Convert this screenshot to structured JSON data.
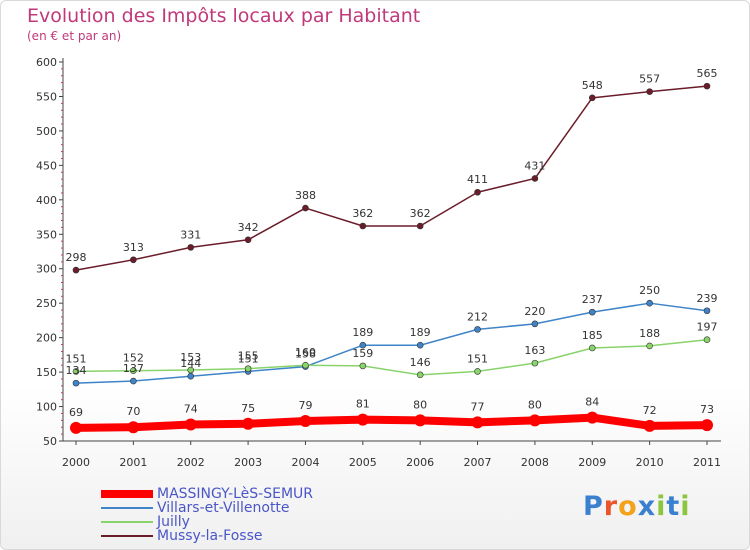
{
  "chart_data": {
    "type": "line",
    "title": "Evolution des Impôts locaux par Habitant",
    "subtitle": "(en € et par an)",
    "x": [
      "2000",
      "2001",
      "2002",
      "2003",
      "2004",
      "2005",
      "2006",
      "2007",
      "2008",
      "2009",
      "2010",
      "2011"
    ],
    "xlabel": "",
    "ylabel": "",
    "ylim": [
      50,
      600
    ],
    "yticks": [
      50,
      100,
      150,
      200,
      250,
      300,
      350,
      400,
      450,
      500,
      550,
      600
    ],
    "grid": false,
    "legend_position": "bottom-left",
    "series": [
      {
        "name": "Mussy-la-Fosse",
        "color": "#6b1c2a",
        "values": [
          298,
          313,
          331,
          342,
          388,
          362,
          362,
          411,
          431,
          548,
          557,
          565
        ]
      },
      {
        "name": "Villars-et-Villenotte",
        "color": "#3f84c8",
        "values": [
          134,
          137,
          144,
          151,
          158,
          189,
          189,
          212,
          220,
          237,
          250,
          239
        ]
      },
      {
        "name": "Juilly",
        "color": "#88d36a",
        "values": [
          151,
          152,
          153,
          155,
          160,
          159,
          146,
          151,
          163,
          185,
          188,
          197
        ]
      },
      {
        "name": "MASSINGY-LèS-SEMUR",
        "color": "#ff0000",
        "values": [
          69,
          70,
          74,
          75,
          79,
          81,
          80,
          77,
          80,
          84,
          72,
          73
        ]
      }
    ]
  },
  "legend": [
    {
      "label": "MASSINGY-LèS-SEMUR",
      "color": "#ff0000"
    },
    {
      "label": "Villars-et-Villenotte",
      "color": "#3f84c8"
    },
    {
      "label": "Juilly",
      "color": "#88d36a"
    },
    {
      "label": "Mussy-la-Fosse",
      "color": "#6b1c2a"
    }
  ],
  "brand": {
    "letters": [
      "P",
      "r",
      "o",
      "x",
      "i",
      "t",
      "i"
    ],
    "colors": [
      "#3a7fd0",
      "#e8562a",
      "#f2a31b",
      "#3a7fd0",
      "#8cc63f",
      "#3a7fd0",
      "#8cc63f"
    ]
  }
}
